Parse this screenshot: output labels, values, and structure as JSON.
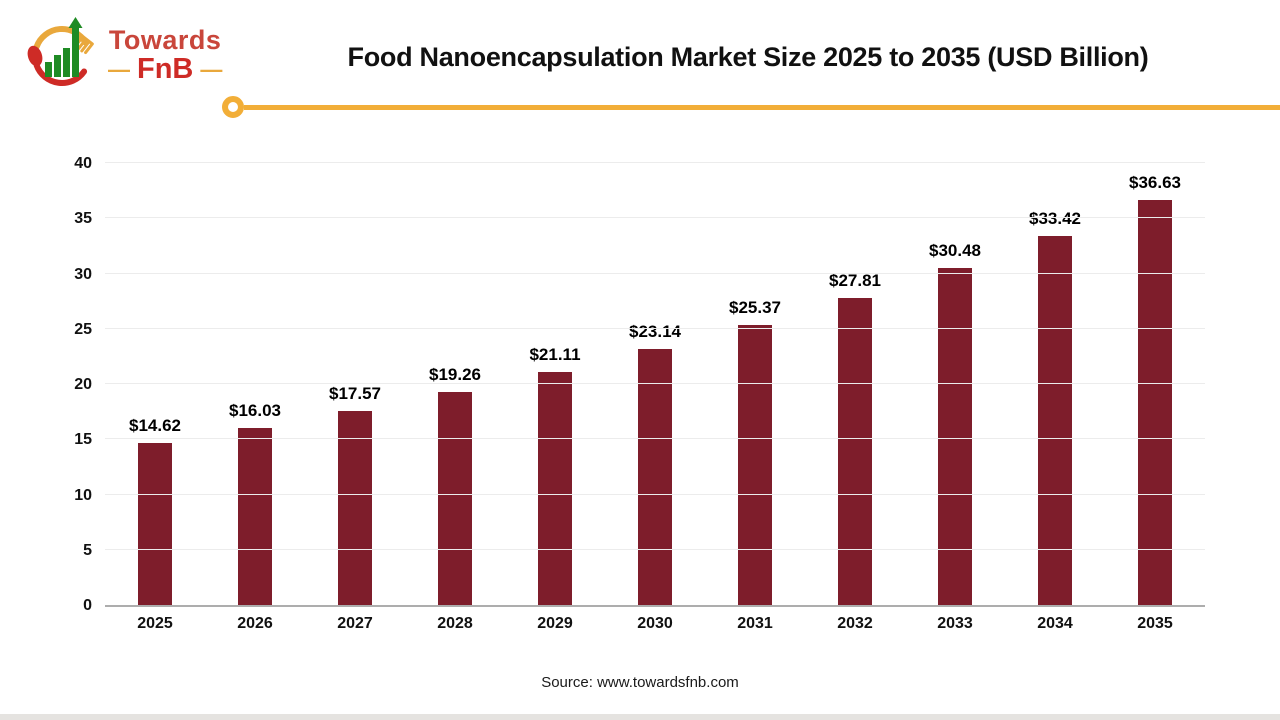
{
  "logo": {
    "line1": "Towards",
    "line2": "FnB",
    "dash_left": "—",
    "dash_right": "—"
  },
  "chart_data": {
    "type": "bar",
    "title": "Food Nanoencapsulation Market Size 2025 to 2035 (USD Billion)",
    "categories": [
      "2025",
      "2026",
      "2027",
      "2028",
      "2029",
      "2030",
      "2031",
      "2032",
      "2033",
      "2034",
      "2035"
    ],
    "values": [
      14.62,
      16.03,
      17.57,
      19.26,
      21.11,
      23.14,
      25.37,
      27.81,
      30.48,
      33.42,
      36.63
    ],
    "value_labels": [
      "$14.62",
      "$16.03",
      "$17.57",
      "$19.26",
      "$21.11",
      "$23.14",
      "$25.37",
      "$27.81",
      "$30.48",
      "$33.42",
      "$36.63"
    ],
    "xlabel": "",
    "ylabel": "",
    "ylim": [
      0,
      40
    ],
    "yticks": [
      0,
      5,
      10,
      15,
      20,
      25,
      30,
      35,
      40
    ],
    "grid": true,
    "legend": false,
    "bar_color": "#7E1D2B"
  },
  "footer": {
    "source": "Source: www.towardsfnb.com"
  },
  "colors": {
    "bar": "#7E1D2B",
    "accent_yellow": "#F2AE38",
    "grid": "#ECECEC",
    "axis": "#ADADAD",
    "title_text": "#111111",
    "logo_red": "#CE2B26",
    "logo_text_red": "#C9463B",
    "logo_yellow": "#E9A83C",
    "logo_green": "#1F8B24",
    "background": "#FFFFFF",
    "bottom_strip": "#E5E3E0"
  }
}
